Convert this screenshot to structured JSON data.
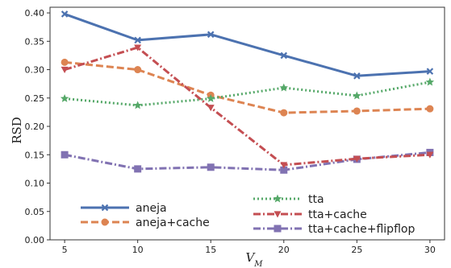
{
  "chart_data": {
    "type": "line",
    "xlabel": "V_M",
    "ylabel": "RSD",
    "x": [
      5,
      10,
      15,
      20,
      25,
      30
    ],
    "xticks": [
      "5",
      "10",
      "15",
      "20",
      "25",
      "30"
    ],
    "xlim": [
      4,
      31
    ],
    "ylim": [
      0,
      0.41
    ],
    "yticks": [
      "0.00",
      "0.05",
      "0.10",
      "0.15",
      "0.20",
      "0.25",
      "0.30",
      "0.35",
      "0.40"
    ],
    "grid": false,
    "legend_position": "bottom-left",
    "series": [
      {
        "name": "aneja",
        "color": "#4c72b0",
        "line_style": "solid",
        "marker": "x",
        "values": [
          0.398,
          0.352,
          0.362,
          0.325,
          0.289,
          0.297
        ]
      },
      {
        "name": "aneja+cache",
        "color": "#dd8452",
        "line_style": "dashed",
        "marker": "circle",
        "values": [
          0.313,
          0.3,
          0.255,
          0.224,
          0.227,
          0.231
        ]
      },
      {
        "name": "tta",
        "color": "#55a868",
        "line_style": "dotted",
        "marker": "star",
        "values": [
          0.249,
          0.237,
          0.249,
          0.268,
          0.254,
          0.278
        ]
      },
      {
        "name": "tta+cache",
        "color": "#c44e52",
        "line_style": "dashdot",
        "marker": "triangle-down",
        "values": [
          0.3,
          0.339,
          0.233,
          0.132,
          0.143,
          0.15
        ]
      },
      {
        "name": "tta+cache+flipflop",
        "color": "#8172b2",
        "line_style": "dashdot",
        "marker": "square",
        "values": [
          0.15,
          0.125,
          0.128,
          0.123,
          0.142,
          0.154
        ]
      }
    ]
  }
}
